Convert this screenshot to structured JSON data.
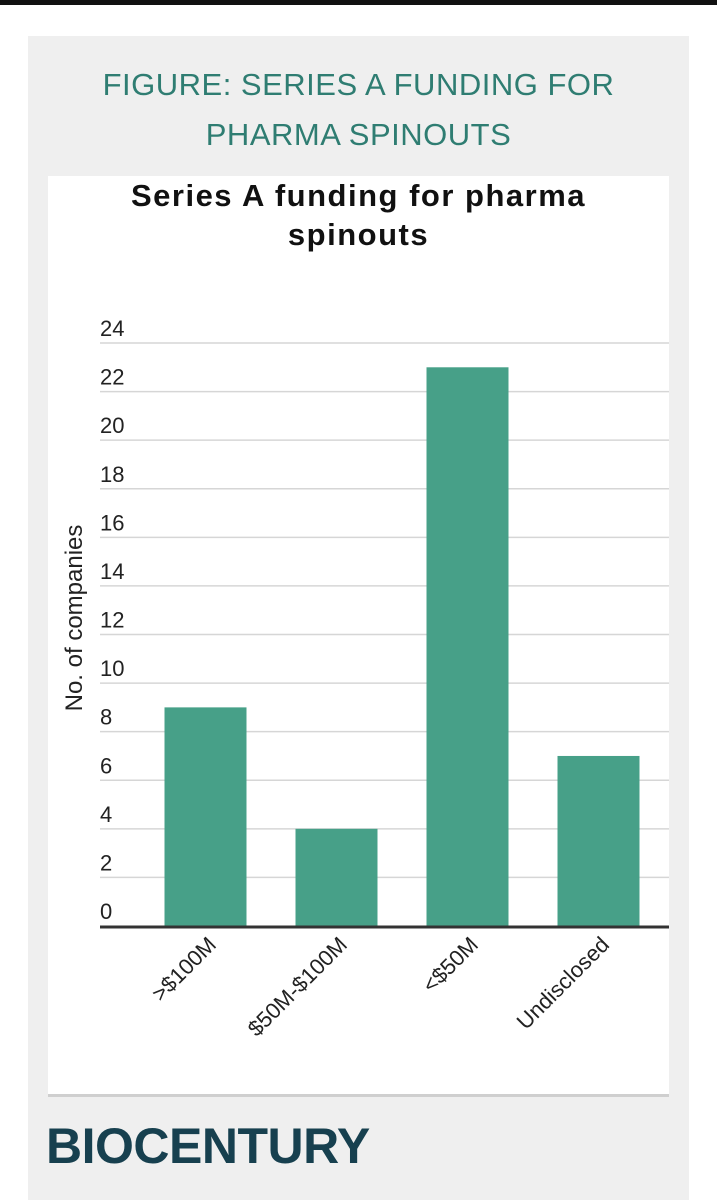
{
  "figure": {
    "heading_line1": "FIGURE: SERIES A FUNDING FOR",
    "heading_line2": "PHARMA SPINOUTS"
  },
  "brand": "BIOCENTURY",
  "colors": {
    "bar": "#47a088",
    "heading": "#2f7d72",
    "brand": "#17404f",
    "grid": "#d6d6d6"
  },
  "chart_data": {
    "type": "bar",
    "title_line1": "Series A funding for pharma",
    "title_line2": "spinouts",
    "xlabel": "",
    "ylabel": "No. of companies",
    "categories": [
      ">$100M",
      "$50M-$100M",
      "<$50M",
      "Undisclosed"
    ],
    "values": [
      9,
      4,
      23,
      7
    ],
    "ylim": [
      0,
      24
    ],
    "yticks": [
      0,
      2,
      4,
      6,
      8,
      10,
      12,
      14,
      16,
      18,
      20,
      22,
      24
    ],
    "grid": true,
    "legend": "none"
  }
}
